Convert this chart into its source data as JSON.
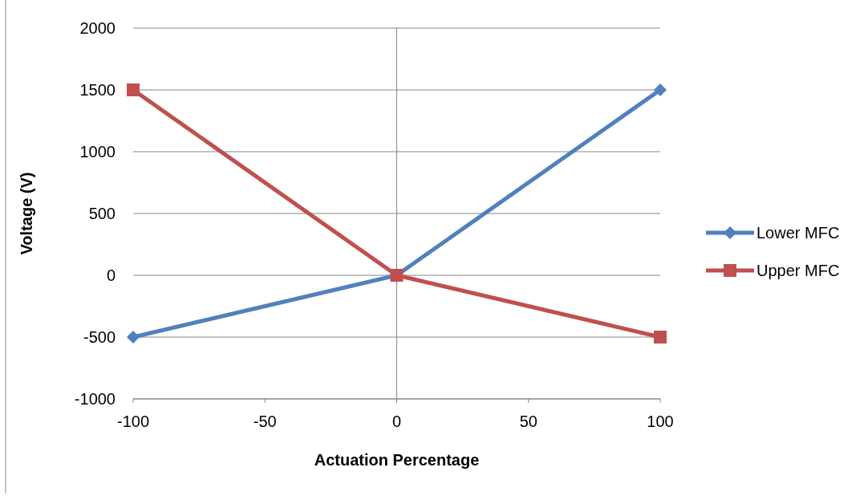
{
  "chart_data": {
    "type": "line",
    "xlabel": "Actuation Percentage",
    "ylabel": "Voltage (V)",
    "x": [
      -100,
      0,
      100
    ],
    "series": [
      {
        "name": "Lower MFC",
        "color": "#4f81bd",
        "marker": "diamond",
        "values": [
          -500,
          0,
          1500
        ]
      },
      {
        "name": "Upper MFC",
        "color": "#c0504d",
        "marker": "square",
        "values": [
          1500,
          0,
          -500
        ]
      }
    ],
    "xlim": [
      -100,
      100
    ],
    "xticks": [
      -100,
      -50,
      0,
      50,
      100
    ],
    "ylim": [
      -1000,
      2000
    ],
    "yticks": [
      -1000,
      -500,
      0,
      500,
      1000,
      1500,
      2000
    ],
    "grid": "y",
    "ref_lines": [
      {
        "axis": "x",
        "value": 0,
        "color": "#868686"
      }
    ],
    "legend": "right"
  }
}
